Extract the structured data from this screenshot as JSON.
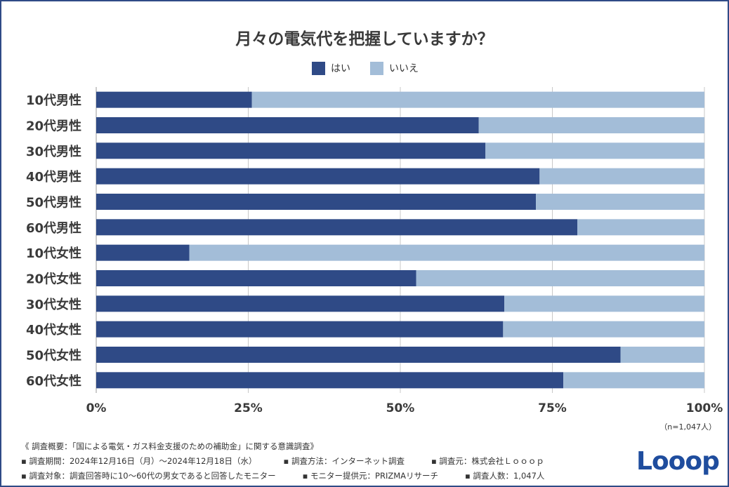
{
  "title": "月々の電気代を把握していますか？",
  "legend": [
    {
      "label": "はい",
      "color": "#2f4a86"
    },
    {
      "label": "いいえ",
      "color": "#a3bdd8"
    }
  ],
  "sample_size": "（n=1,047人）",
  "footer": {
    "heading": "《 調査概要：「国による電気・ガス料金支援のための補助金」に関する意識調査》",
    "period": "▪ 調査期間：2024年12月16日（月）～2024年12月18日（水）",
    "method": "▪ 調査方法：インターネット調査",
    "source": "▪ 調査元：株式会社Ｌｏｏｏｐ",
    "target": "▪ 調査対象：調査回答時に10～60代の男女であると回答したモニター",
    "provider": "▪ モニター提供元：PRIZMAリサーチ",
    "respondents": "▪ 調査人数：1,047人"
  },
  "logo": "Looop",
  "chart_data": {
    "type": "bar",
    "orientation": "horizontal",
    "stacked": true,
    "title": "月々の電気代を把握していますか？",
    "categories": [
      "10代男性",
      "20代男性",
      "30代男性",
      "40代男性",
      "50代男性",
      "60代男性",
      "10代女性",
      "20代女性",
      "30代女性",
      "40代女性",
      "50代女性",
      "60代女性"
    ],
    "series": [
      {
        "name": "はい",
        "color": "#2f4a86",
        "values": [
          25.6,
          62.9,
          64.0,
          72.9,
          72.3,
          79.1,
          15.3,
          52.6,
          67.1,
          66.9,
          86.2,
          76.8
        ]
      },
      {
        "name": "いいえ",
        "color": "#a3bdd8",
        "values": [
          74.4,
          37.1,
          36.0,
          27.1,
          27.7,
          20.9,
          84.7,
          47.4,
          32.9,
          33.1,
          13.8,
          23.2
        ]
      }
    ],
    "xlim": [
      0,
      100
    ],
    "xticks": [
      0,
      25,
      50,
      75,
      100
    ],
    "xtick_labels": [
      "0%",
      "25%",
      "50%",
      "75%",
      "100%"
    ],
    "grid": true,
    "legend_position": "top-center"
  }
}
